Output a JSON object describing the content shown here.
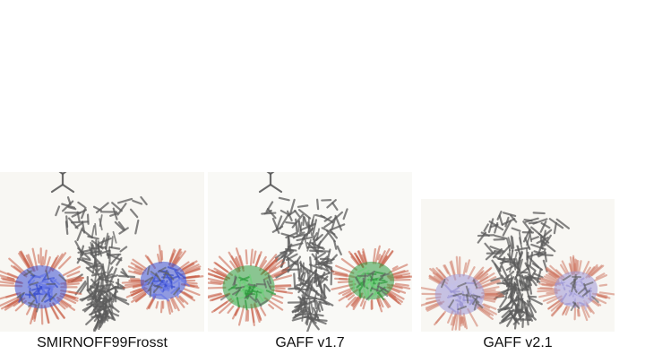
{
  "panels": [
    {
      "label": "SMIRNOFF99Frosst",
      "accent": "#3a4fd0",
      "accent_light": "#6a7ae8",
      "core": "#5c5c5c",
      "tip": "#c9614a"
    },
    {
      "label": "GAFF v1.7",
      "accent": "#2f9a3e",
      "accent_light": "#6ccf78",
      "core": "#5c5c5c",
      "tip": "#c9614a"
    },
    {
      "label": "GAFF v2.1",
      "accent": "#9c96d4",
      "accent_light": "#c4c0ea",
      "core": "#5c5c5c",
      "tip": "#d07a66"
    }
  ]
}
